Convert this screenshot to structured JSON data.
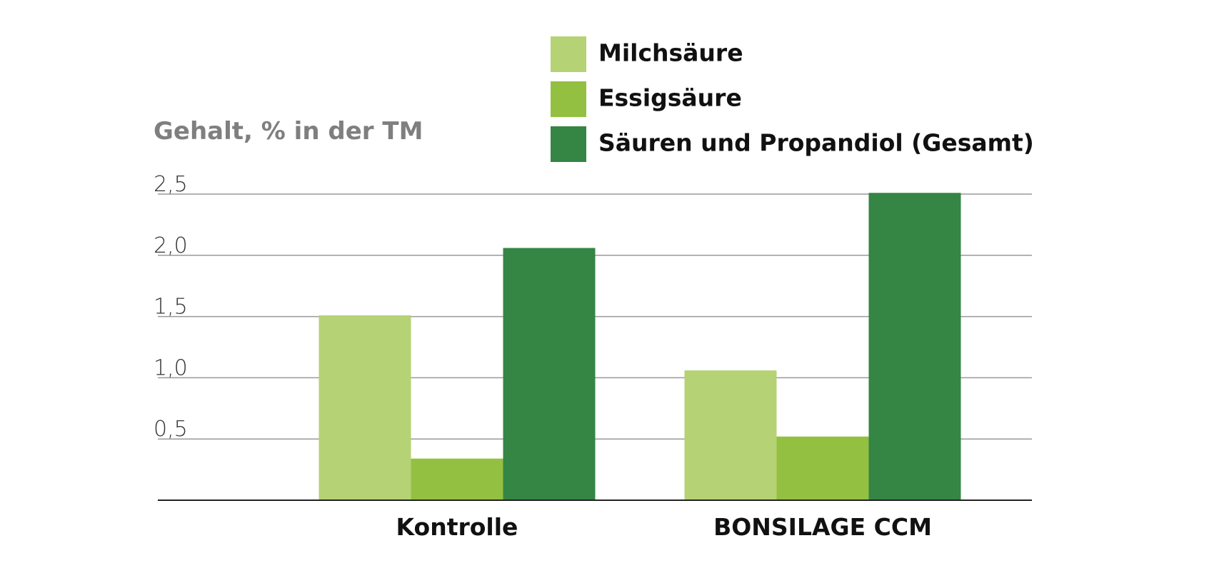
{
  "chart_data": {
    "type": "bar",
    "y_axis_label": "Gehalt, % in der TM",
    "categories": [
      "Kontrolle",
      "BONSILAGE CCM"
    ],
    "series": [
      {
        "name": "Milchsäure",
        "color": "#b5d275",
        "values": [
          1.51,
          1.06
        ]
      },
      {
        "name": "Essigsäure",
        "color": "#94c042",
        "values": [
          0.34,
          0.52
        ]
      },
      {
        "name": "Säuren und Propandiol (Gesamt)",
        "color": "#358544",
        "values": [
          2.06,
          2.51
        ]
      }
    ],
    "ylim": [
      0,
      2.5
    ],
    "yticks": [
      {
        "value": 0.5,
        "label": "0,5"
      },
      {
        "value": 1.0,
        "label": "1,0"
      },
      {
        "value": 1.5,
        "label": "1,5"
      },
      {
        "value": 2.0,
        "label": "2,0"
      },
      {
        "value": 2.5,
        "label": "2,5"
      }
    ],
    "grid": true
  }
}
